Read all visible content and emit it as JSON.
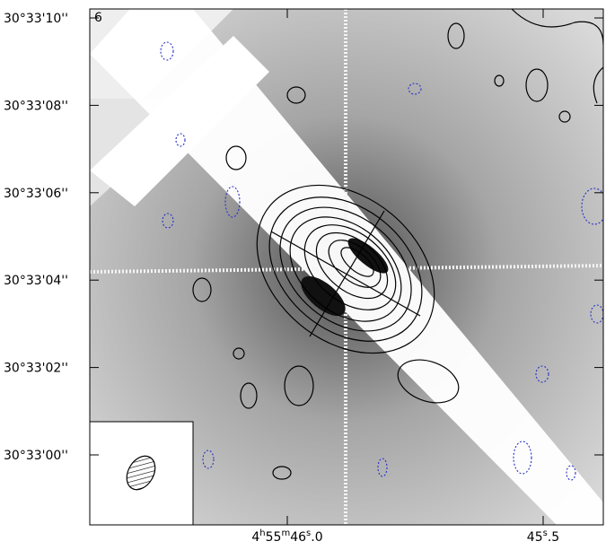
{
  "panel_label": "6",
  "y_ticks": [
    "30°33'10''",
    "30°33'08''",
    "30°33'06''",
    "30°33'04''",
    "30°33'02''",
    "30°33'00''"
  ],
  "x_ticks": [
    {
      "parts": [
        "4",
        "h",
        "55",
        "m",
        "46",
        "s",
        ".0"
      ]
    },
    {
      "parts": [
        "45",
        "s",
        ".5"
      ]
    }
  ]
}
